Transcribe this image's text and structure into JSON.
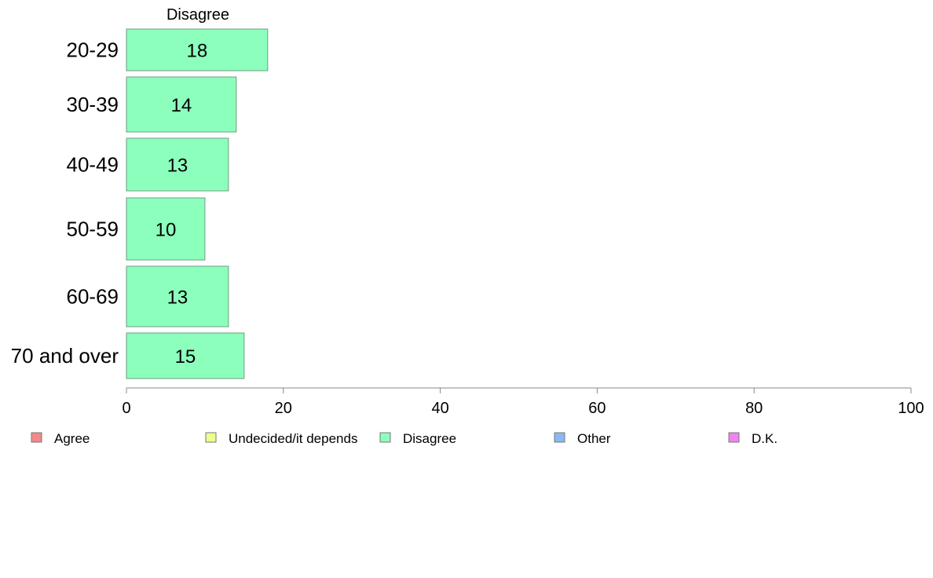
{
  "chart_data": {
    "type": "bar",
    "orientation": "horizontal",
    "column_header": "Disagree",
    "categories": [
      "20-29",
      "30-39",
      "40-49",
      "50-59",
      "60-69",
      "70 and over"
    ],
    "series": [
      {
        "name": "Disagree",
        "values": [
          18,
          14,
          13,
          10,
          13,
          15
        ],
        "color": "#8cffbc"
      }
    ],
    "xlim": [
      0,
      100
    ],
    "xticks": [
      0,
      20,
      40,
      60,
      80,
      100
    ],
    "grid": false,
    "legend_position": "bottom",
    "legend": [
      {
        "label": "Agree",
        "color": "#f28a8a"
      },
      {
        "label": "Undecided/it depends",
        "color": "#eeff8c"
      },
      {
        "label": "Disagree",
        "color": "#8cffbc"
      },
      {
        "label": "Other",
        "color": "#8cb8f2"
      },
      {
        "label": "D.K.",
        "color": "#ee86f0"
      }
    ]
  }
}
